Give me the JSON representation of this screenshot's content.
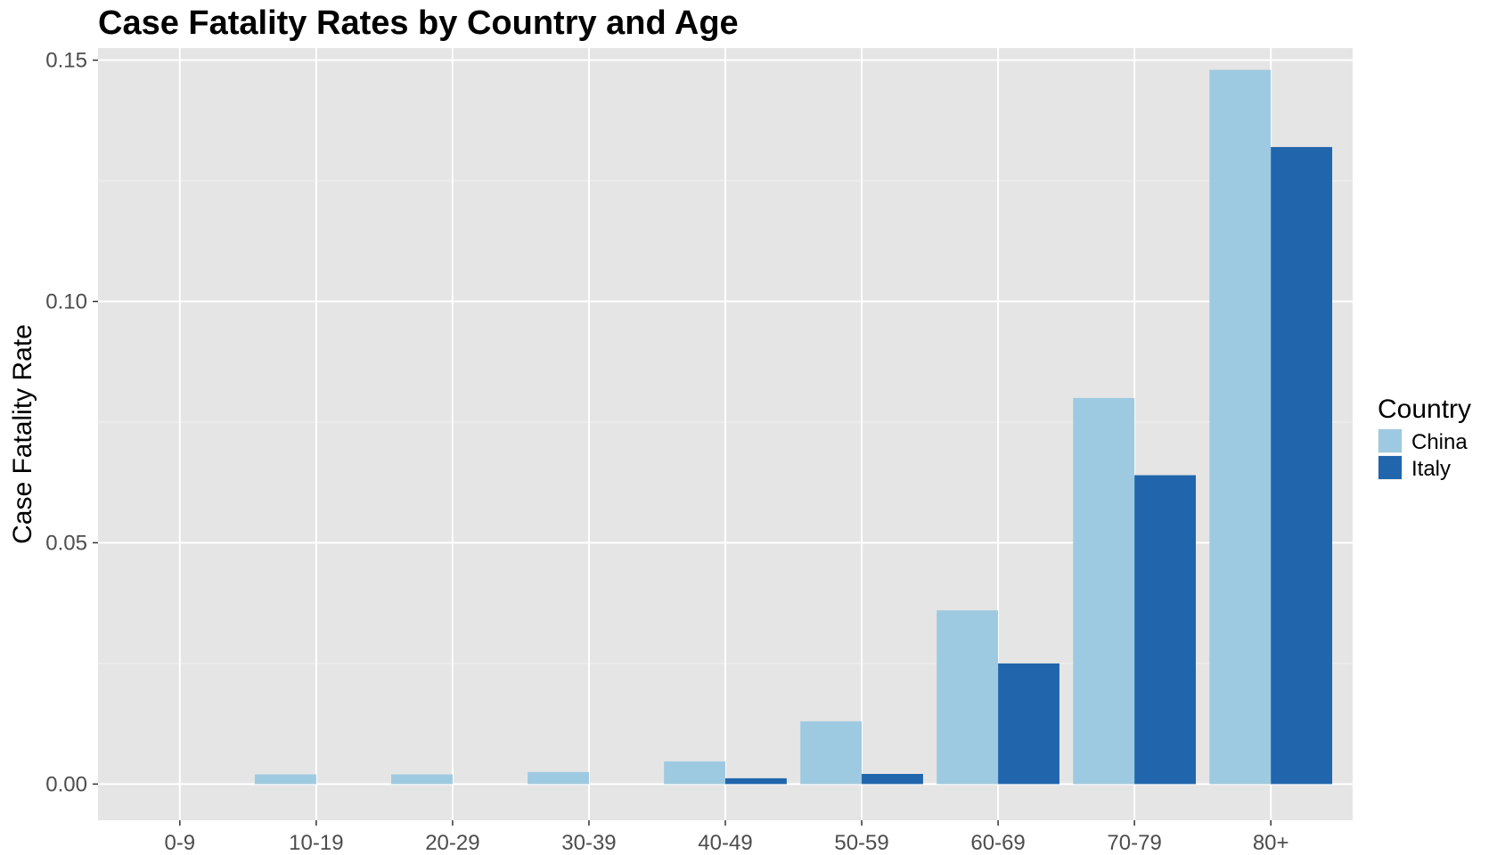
{
  "chart_data": {
    "type": "bar",
    "title": "Case Fatality Rates by Country and Age",
    "xlabel": "",
    "ylabel": "Case Fatality Rate",
    "categories": [
      "0-9",
      "10-19",
      "20-29",
      "30-39",
      "40-49",
      "50-59",
      "60-69",
      "70-79",
      "80+"
    ],
    "series": [
      {
        "name": "China",
        "color": "#9ecae1",
        "values": [
          0.0,
          0.002,
          0.002,
          0.0025,
          0.0047,
          0.013,
          0.036,
          0.08,
          0.148
        ]
      },
      {
        "name": "Italy",
        "color": "#2166ac",
        "values": [
          0.0,
          0.0,
          0.0,
          0.0,
          0.0012,
          0.0021,
          0.025,
          0.064,
          0.132
        ]
      }
    ],
    "ylim": [
      -0.0075,
      0.1525
    ],
    "yticks": [
      0.0,
      0.05,
      0.1,
      0.15
    ],
    "ytick_labels": [
      "0.00",
      "0.05",
      "0.10",
      "0.15"
    ],
    "legend": {
      "title": "Country",
      "placement": "right"
    },
    "grid": true,
    "panel_background": "#e5e5e5"
  }
}
